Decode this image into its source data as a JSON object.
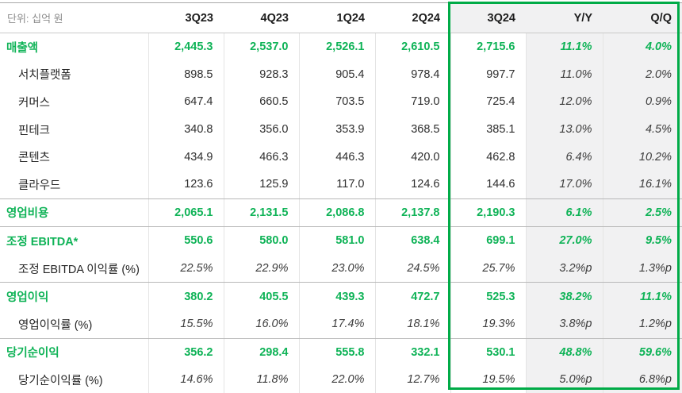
{
  "table": {
    "unit_label": "단위: 십억 원",
    "columns": [
      "3Q23",
      "4Q23",
      "1Q24",
      "2Q24",
      "3Q24",
      "Y/Y",
      "Q/Q"
    ],
    "highlight": {
      "boxed_columns": [
        "3Q24",
        "Y/Y",
        "Q/Q"
      ],
      "border_color": "#00ab47",
      "shaded_columns": [
        "Y/Y",
        "Q/Q"
      ],
      "shaded_bg": "#f1f1f2"
    },
    "accent_text_color": "#0fb357",
    "rows": [
      {
        "label": "매출액",
        "style": "primary",
        "section_end": false,
        "values": [
          "2,445.3",
          "2,537.0",
          "2,526.1",
          "2,610.5",
          "2,715.6",
          "11.1%",
          "4.0%"
        ]
      },
      {
        "label": "서치플랫폼",
        "style": "segment",
        "section_end": false,
        "values": [
          "898.5",
          "928.3",
          "905.4",
          "978.4",
          "997.7",
          "11.0%",
          "2.0%"
        ]
      },
      {
        "label": "커머스",
        "style": "segment",
        "section_end": false,
        "values": [
          "647.4",
          "660.5",
          "703.5",
          "719.0",
          "725.4",
          "12.0%",
          "0.9%"
        ]
      },
      {
        "label": "핀테크",
        "style": "segment",
        "section_end": false,
        "values": [
          "340.8",
          "356.0",
          "353.9",
          "368.5",
          "385.1",
          "13.0%",
          "4.5%"
        ]
      },
      {
        "label": "콘텐츠",
        "style": "segment",
        "section_end": false,
        "values": [
          "434.9",
          "466.3",
          "446.3",
          "420.0",
          "462.8",
          "6.4%",
          "10.2%"
        ]
      },
      {
        "label": "클라우드",
        "style": "segment",
        "section_end": true,
        "values": [
          "123.6",
          "125.9",
          "117.0",
          "124.6",
          "144.6",
          "17.0%",
          "16.1%"
        ]
      },
      {
        "label": "영업비용",
        "style": "primary",
        "section_end": true,
        "values": [
          "2,065.1",
          "2,131.5",
          "2,086.8",
          "2,137.8",
          "2,190.3",
          "6.1%",
          "2.5%"
        ]
      },
      {
        "label": "조정 EBITDA*",
        "style": "primary",
        "section_end": false,
        "values": [
          "550.6",
          "580.0",
          "581.0",
          "638.4",
          "699.1",
          "27.0%",
          "9.5%"
        ]
      },
      {
        "label": "조정 EBITDA 이익률 (%)",
        "style": "margin",
        "section_end": true,
        "values": [
          "22.5%",
          "22.9%",
          "23.0%",
          "24.5%",
          "25.7%",
          "3.2%p",
          "1.3%p"
        ]
      },
      {
        "label": "영업이익",
        "style": "primary",
        "section_end": false,
        "values": [
          "380.2",
          "405.5",
          "439.3",
          "472.7",
          "525.3",
          "38.2%",
          "11.1%"
        ]
      },
      {
        "label": "영업이익률 (%)",
        "style": "margin",
        "section_end": true,
        "values": [
          "15.5%",
          "16.0%",
          "17.4%",
          "18.1%",
          "19.3%",
          "3.8%p",
          "1.2%p"
        ]
      },
      {
        "label": "당기순이익",
        "style": "primary",
        "section_end": false,
        "values": [
          "356.2",
          "298.4",
          "555.8",
          "332.1",
          "530.1",
          "48.8%",
          "59.6%"
        ]
      },
      {
        "label": "당기순이익률 (%)",
        "style": "margin",
        "section_end": false,
        "values": [
          "14.6%",
          "11.8%",
          "22.0%",
          "12.7%",
          "19.5%",
          "5.0%p",
          "6.8%p"
        ]
      }
    ]
  }
}
